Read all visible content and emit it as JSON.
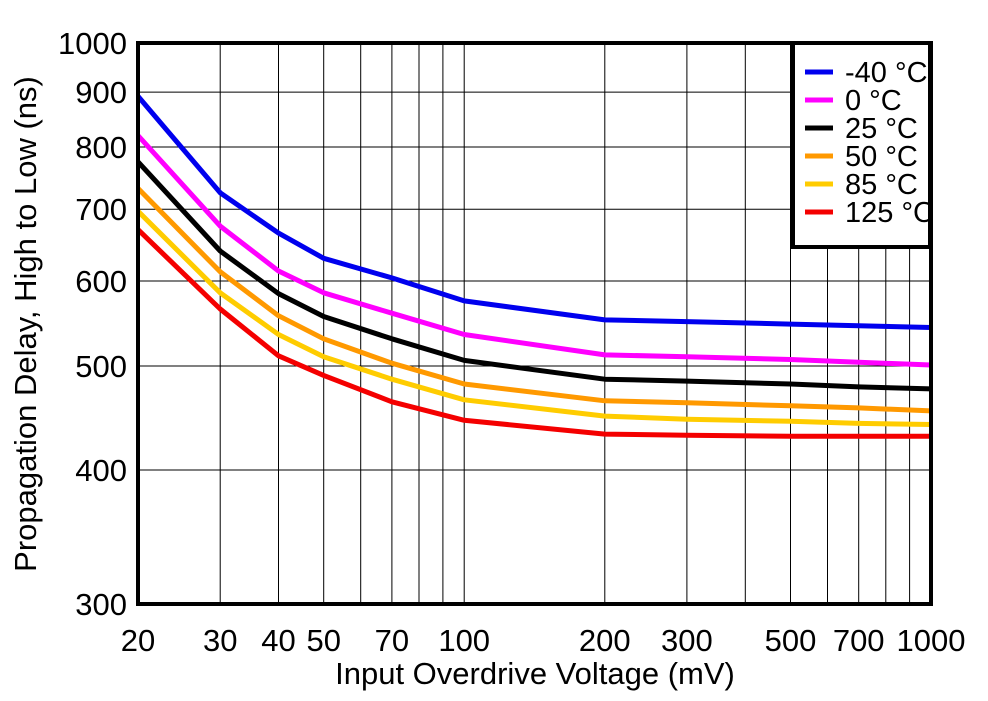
{
  "chart_data": {
    "type": "line",
    "title": "",
    "xlabel": "Input Overdrive Voltage (mV)",
    "ylabel": "Propagation Delay, High to Low (ns)",
    "x_scale": "log",
    "y_scale": "log",
    "xlim": [
      20,
      1000
    ],
    "ylim": [
      300,
      1000
    ],
    "x_ticks": [
      20,
      30,
      40,
      50,
      70,
      100,
      200,
      300,
      500,
      700,
      1000
    ],
    "y_ticks": [
      300,
      400,
      500,
      600,
      700,
      800,
      900,
      1000
    ],
    "x_gridlines": [
      30,
      40,
      50,
      60,
      70,
      80,
      90,
      100,
      200,
      300,
      400,
      500,
      600,
      700,
      800,
      900
    ],
    "y_gridlines": [
      400,
      500,
      600,
      700,
      800,
      900
    ],
    "grid": true,
    "grid_color": "#000000",
    "background_color": "#ffffff",
    "legend_position": "top-right",
    "x": [
      20,
      30,
      40,
      50,
      70,
      100,
      200,
      300,
      500,
      700,
      1000
    ],
    "series": [
      {
        "name": "-40 °C",
        "color": "#0000EE",
        "values": [
          892,
          725,
          665,
          630,
          604,
          575,
          552,
          550,
          547,
          545,
          543
        ]
      },
      {
        "name": "0 °C",
        "color": "#FF00FF",
        "values": [
          820,
          675,
          613,
          585,
          560,
          535,
          512,
          510,
          507,
          504,
          501
        ]
      },
      {
        "name": "25 °C",
        "color": "#000000",
        "values": [
          775,
          640,
          584,
          556,
          530,
          506,
          486,
          484,
          481,
          478,
          476
        ]
      },
      {
        "name": "50 °C",
        "color": "#FF9900",
        "values": [
          732,
          612,
          557,
          530,
          503,
          481,
          464,
          462,
          459,
          457,
          454
        ]
      },
      {
        "name": "85 °C",
        "color": "#FFCC00",
        "values": [
          697,
          585,
          535,
          510,
          486,
          465,
          449,
          446,
          444,
          442,
          441
        ]
      },
      {
        "name": "125 °C",
        "color": "#F40000",
        "values": [
          670,
          565,
          511,
          490,
          463,
          445,
          432,
          431,
          430,
          430,
          430
        ]
      }
    ]
  }
}
